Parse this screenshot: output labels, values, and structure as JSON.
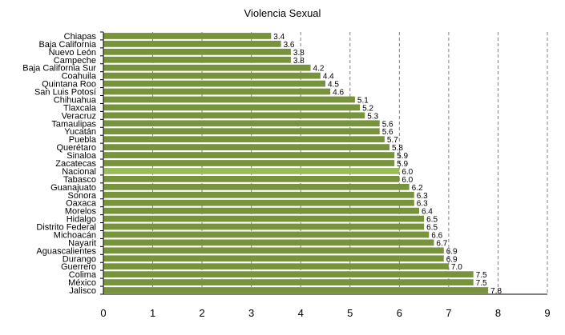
{
  "chart_data": {
    "type": "bar",
    "orientation": "horizontal",
    "title": "Violencia Sexual",
    "xlabel": "",
    "ylabel": "",
    "xlim": [
      0,
      9
    ],
    "x_ticks": [
      "0",
      "1",
      "2",
      "3",
      "4",
      "5",
      "6",
      "7",
      "8",
      "9"
    ],
    "grid": "vertical dashed",
    "legend": "none",
    "bar_color": "#77933c",
    "highlight_color": "#9bbb59",
    "highlight_category": "Nacional",
    "categories": [
      "Chiapas",
      "Baja California",
      "Nuevo León",
      "Campeche",
      "Baja California Sur",
      "Coahuila",
      "Quintana Roo",
      "San Luis Potosí",
      "Chihuahua",
      "Tlaxcala",
      "Veracruz",
      "Tamaulipas",
      "Yucatán",
      "Puebla",
      "Querétaro",
      "Sinaloa",
      "Zacatecas",
      "Nacional",
      "Tabasco",
      "Guanajuato",
      "Sonora",
      "Oaxaca",
      "Morelos",
      "Hidalgo",
      "Distrito Federal",
      "Michoacán",
      "Nayarit",
      "Aguascalientes",
      "Durango",
      "Guerrero",
      "Colima",
      "México",
      "Jalisco"
    ],
    "values": [
      3.4,
      3.6,
      3.8,
      3.8,
      4.2,
      4.4,
      4.5,
      4.6,
      5.1,
      5.2,
      5.3,
      5.6,
      5.6,
      5.7,
      5.8,
      5.9,
      5.9,
      6.0,
      6.0,
      6.2,
      6.3,
      6.3,
      6.4,
      6.5,
      6.5,
      6.6,
      6.7,
      6.9,
      6.9,
      7.0,
      7.5,
      7.5,
      7.8
    ],
    "value_labels": [
      "3.4",
      "3.6",
      "3.8",
      "3.8",
      "4.2",
      "4.4",
      "4.5",
      "4.6",
      "5.1",
      "5.2",
      "5.3",
      "5.6",
      "5.6",
      "5.7",
      "5.8",
      "5.9",
      "5.9",
      "6.0",
      "6.0",
      "6.2",
      "6.3",
      "6.3",
      "6.4",
      "6.5",
      "6.5",
      "6.6",
      "6.7",
      "6.9",
      "6.9",
      "7.0",
      "7.5",
      "7.5",
      "7.8"
    ]
  }
}
